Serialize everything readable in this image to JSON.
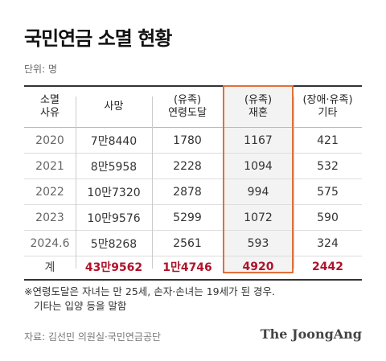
{
  "title": "국민연금 소멸 현황",
  "unit": "단위: 명",
  "headers": [
    [
      "소멸",
      "사유"
    ],
    [
      "사망"
    ],
    [
      "(유족)",
      "연령도달"
    ],
    [
      "(유족)",
      "재혼"
    ],
    [
      "(장애·유족)",
      "기타"
    ]
  ],
  "rows": [
    [
      "2020",
      "7만8440",
      "1780",
      "1167",
      "421"
    ],
    [
      "2021",
      "8만5958",
      "2228",
      "1094",
      "532"
    ],
    [
      "2022",
      "10만7320",
      "2878",
      "994",
      "575"
    ],
    [
      "2023",
      "10만9576",
      "5299",
      "1072",
      "590"
    ],
    [
      "2024.6",
      "5만8268",
      "2561",
      "593",
      "324"
    ]
  ],
  "total": [
    "계",
    "43만9562",
    "1만4746",
    "4920",
    "2442"
  ],
  "note_lines": [
    "※연령도달은 자녀는 만 25세, 손자·손녀는 19세가 된 경우.",
    "기타는 입양 등을 말함"
  ],
  "source": "자료: 김선민 의원실·국민연금공단",
  "logo": "The JoongAng",
  "highlight_color": "#e0703a",
  "total_color": "#b0132b"
}
